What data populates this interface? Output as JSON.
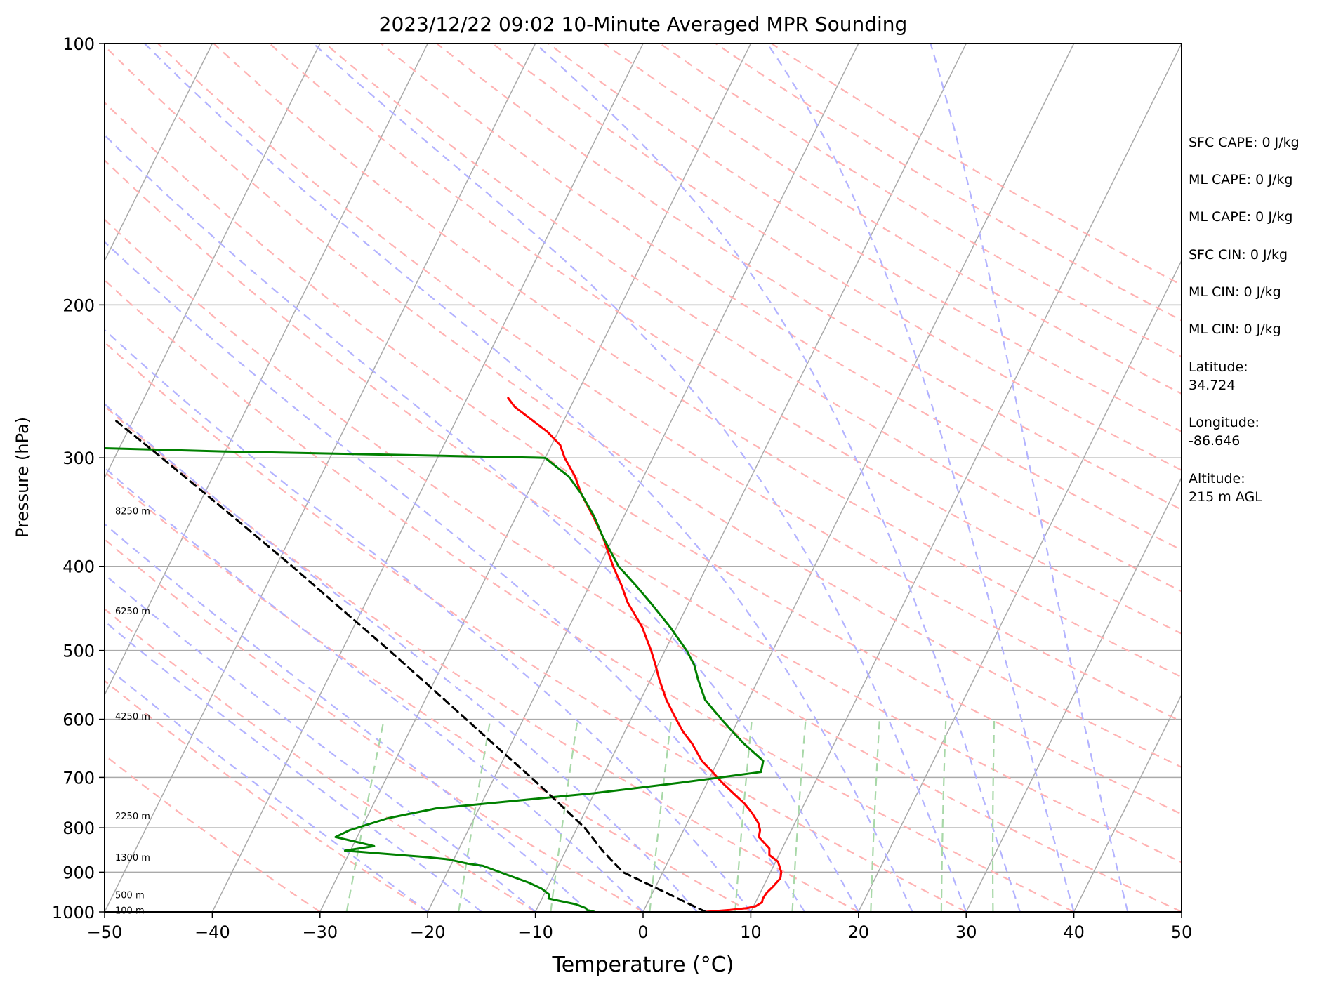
{
  "chart_data": {
    "type": "line",
    "title": "2023/12/22 09:02 10-Minute Averaged MPR Sounding",
    "xlabel": "Temperature (°C)",
    "ylabel": "Pressure (hPa)",
    "xlim": [
      -50,
      50
    ],
    "ylim": [
      1000,
      100
    ],
    "y_scale": "log",
    "skew": "skew-T log-p diagram",
    "x_ticks": [
      -50,
      -40,
      -30,
      -20,
      -10,
      0,
      10,
      20,
      30,
      40,
      50
    ],
    "y_ticks": [
      100,
      200,
      300,
      400,
      500,
      600,
      700,
      800,
      900,
      1000
    ],
    "x_tick_labels": [
      "−50",
      "−40",
      "−30",
      "−20",
      "−10",
      "0",
      "10",
      "20",
      "30",
      "40",
      "50"
    ],
    "y_tick_labels": [
      "100",
      "200",
      "300",
      "400",
      "500",
      "600",
      "700",
      "800",
      "900",
      "1000"
    ],
    "grid": true,
    "height_labels": [
      {
        "p": 345,
        "text": "8250 m"
      },
      {
        "p": 450,
        "text": "6250 m"
      },
      {
        "p": 595,
        "text": "4250 m"
      },
      {
        "p": 775,
        "text": "2250 m"
      },
      {
        "p": 865,
        "text": "1300 m"
      },
      {
        "p": 955,
        "text": "500 m"
      },
      {
        "p": 995,
        "text": "100 m"
      }
    ],
    "series": [
      {
        "kind": "temperature",
        "color": "#ff0000",
        "points": [
          [
            1000,
            5.8
          ],
          [
            995,
            8.0
          ],
          [
            990,
            9.5
          ],
          [
            985,
            10.2
          ],
          [
            975,
            10.6
          ],
          [
            965,
            10.5
          ],
          [
            950,
            10.6
          ],
          [
            935,
            10.9
          ],
          [
            915,
            11.2
          ],
          [
            900,
            11.0
          ],
          [
            875,
            10.2
          ],
          [
            860,
            9.1
          ],
          [
            845,
            8.8
          ],
          [
            835,
            8.2
          ],
          [
            820,
            7.3
          ],
          [
            805,
            7.1
          ],
          [
            790,
            6.6
          ],
          [
            770,
            5.6
          ],
          [
            750,
            4.4
          ],
          [
            730,
            2.9
          ],
          [
            710,
            1.4
          ],
          [
            690,
            0.0
          ],
          [
            670,
            -1.5
          ],
          [
            640,
            -3.2
          ],
          [
            620,
            -4.6
          ],
          [
            600,
            -5.8
          ],
          [
            570,
            -7.6
          ],
          [
            540,
            -9.2
          ],
          [
            520,
            -10.2
          ],
          [
            500,
            -11.3
          ],
          [
            470,
            -13.2
          ],
          [
            440,
            -15.7
          ],
          [
            420,
            -17.1
          ],
          [
            400,
            -18.7
          ],
          [
            370,
            -21.0
          ],
          [
            350,
            -22.9
          ],
          [
            330,
            -25.0
          ],
          [
            315,
            -26.4
          ],
          [
            300,
            -28.2
          ],
          [
            290,
            -29.2
          ],
          [
            280,
            -31.0
          ],
          [
            270,
            -33.3
          ],
          [
            262,
            -35.2
          ],
          [
            256,
            -36.2
          ]
        ]
      },
      {
        "kind": "dewpoint",
        "color": "#008000",
        "points": [
          [
            1000,
            -4.5
          ],
          [
            995,
            -5.3
          ],
          [
            990,
            -5.5
          ],
          [
            980,
            -6.6
          ],
          [
            970,
            -8.5
          ],
          [
            965,
            -9.4
          ],
          [
            955,
            -9.5
          ],
          [
            940,
            -10.5
          ],
          [
            925,
            -12.0
          ],
          [
            905,
            -14.5
          ],
          [
            885,
            -17.0
          ],
          [
            880,
            -18.5
          ],
          [
            870,
            -20.5
          ],
          [
            865,
            -22.5
          ],
          [
            850,
            -30.5
          ],
          [
            840,
            -28.0
          ],
          [
            820,
            -32.0
          ],
          [
            805,
            -31.0
          ],
          [
            780,
            -28.0
          ],
          [
            760,
            -24.0
          ],
          [
            730,
            -10.0
          ],
          [
            710,
            -2.5
          ],
          [
            690,
            4.5
          ],
          [
            670,
            4.2
          ],
          [
            640,
            1.6
          ],
          [
            620,
            0.0
          ],
          [
            600,
            -1.6
          ],
          [
            570,
            -4.0
          ],
          [
            540,
            -5.6
          ],
          [
            520,
            -6.6
          ],
          [
            500,
            -8.0
          ],
          [
            470,
            -10.6
          ],
          [
            440,
            -13.6
          ],
          [
            420,
            -15.8
          ],
          [
            400,
            -18.2
          ],
          [
            370,
            -21.0
          ],
          [
            350,
            -22.8
          ],
          [
            330,
            -25.0
          ],
          [
            315,
            -27.0
          ],
          [
            310,
            -28.0
          ],
          [
            300,
            -30.0
          ],
          [
            295,
            -60.0
          ],
          [
            290,
            -82.0
          ]
        ]
      },
      {
        "kind": "parcel",
        "color": "#000000",
        "dashed": true,
        "points": [
          [
            1000,
            5.8
          ],
          [
            950,
            1.2
          ],
          [
            900,
            -3.7
          ],
          [
            850,
            -6.6
          ],
          [
            800,
            -9.3
          ],
          [
            750,
            -12.8
          ],
          [
            700,
            -16.6
          ],
          [
            650,
            -20.8
          ],
          [
            600,
            -25.3
          ],
          [
            550,
            -30.2
          ],
          [
            500,
            -35.6
          ],
          [
            450,
            -41.7
          ],
          [
            400,
            -48.5
          ],
          [
            350,
            -56.4
          ],
          [
            300,
            -65.6
          ],
          [
            270,
            -72.0
          ]
        ]
      }
    ],
    "background_lines": {
      "isotherm_start_temps": [
        -160,
        -150,
        -140,
        -130,
        -120,
        -110,
        -100,
        -90,
        -80,
        -70,
        -60,
        -50,
        -40,
        -30,
        -20,
        -10,
        0,
        10,
        20,
        30,
        40,
        50
      ],
      "dry_adiabat_thetas": [
        -30,
        -20,
        -10,
        0,
        10,
        20,
        30,
        40,
        50,
        60,
        70,
        80,
        90,
        100,
        110,
        120,
        130,
        140,
        150,
        160,
        170,
        180,
        190,
        200
      ],
      "moist_adiabat_start_temps": [
        -20,
        -15,
        -10,
        -5,
        0,
        5,
        10,
        15,
        20,
        25,
        30,
        35,
        40,
        45
      ],
      "mixing_ratios": [
        0.4,
        1,
        2,
        4,
        7,
        10,
        16,
        24,
        32
      ]
    }
  },
  "info_panel": {
    "lines": [
      "SFC CAPE: 0 J/kg",
      "ML CAPE: 0 J/kg",
      "ML CAPE: 0 J/kg",
      "SFC CIN: 0 J/kg",
      "ML CIN: 0 J/kg",
      "ML CIN: 0 J/kg"
    ],
    "latitude_label": "Latitude:",
    "latitude_value": "34.724",
    "longitude_label": "Longitude:",
    "longitude_value": "-86.646",
    "altitude_label": "Altitude:",
    "altitude_value": "215 m AGL"
  },
  "colors": {
    "temperature": "#ff0000",
    "dewpoint": "#008000",
    "parcel": "#000000",
    "isotherm": "#aaaaaa",
    "dry_adiabat": "#ffb3b3",
    "moist_adiabat": "#b3b3ff",
    "mixing_ratio": "#a8d8a8"
  }
}
